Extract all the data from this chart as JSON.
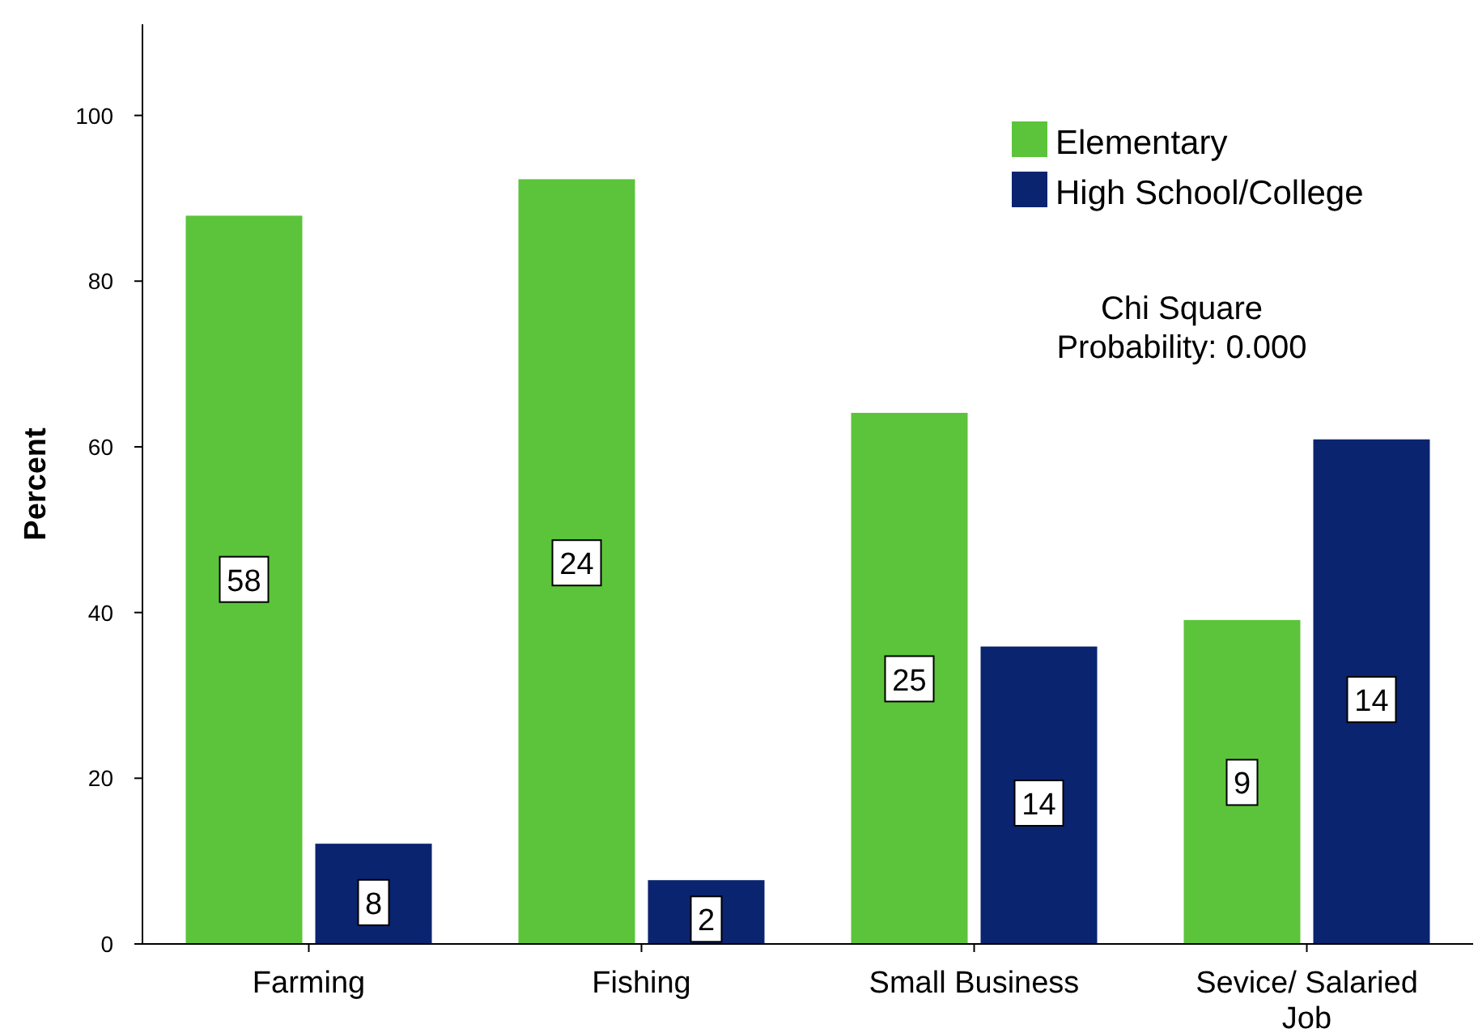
{
  "chart_data": {
    "type": "bar",
    "ylabel": "Percent",
    "categories": [
      "Farming",
      "Fishing",
      "Small Business",
      "Sevice/ Salaried Job"
    ],
    "series": [
      {
        "name": "Elementary",
        "color": "#5cc43a",
        "values": [
          87.9,
          92.3,
          64.1,
          39.1
        ]
      },
      {
        "name": "High School/College",
        "color": "#0b2470",
        "values": [
          12.1,
          7.7,
          35.9,
          60.9
        ]
      }
    ],
    "ylim": [
      0,
      111
    ],
    "yticks": [
      0,
      20,
      40,
      60,
      80,
      100
    ],
    "grid": false,
    "legend": "top right",
    "annotations": [
      "Chi Square\nProbability: 0.000",
      {
        "text": "58",
        "x": "Farming",
        "y": 44
      },
      {
        "text": "8",
        "x": "Farming",
        "y": 5
      },
      {
        "text": "24",
        "x": "Fishing",
        "y": 46
      },
      {
        "text": "2",
        "x": "Fishing",
        "y": 3
      },
      {
        "text": "25",
        "x": "Small Business",
        "y": 32
      },
      {
        "text": "14",
        "x": "Small Business",
        "y": 17
      },
      {
        "text": "9",
        "x": "Sevice/ Salaried Job",
        "y": 19.5
      },
      {
        "text": "14",
        "x": "Sevice/ Salaried Job",
        "y": 29.5
      }
    ]
  }
}
